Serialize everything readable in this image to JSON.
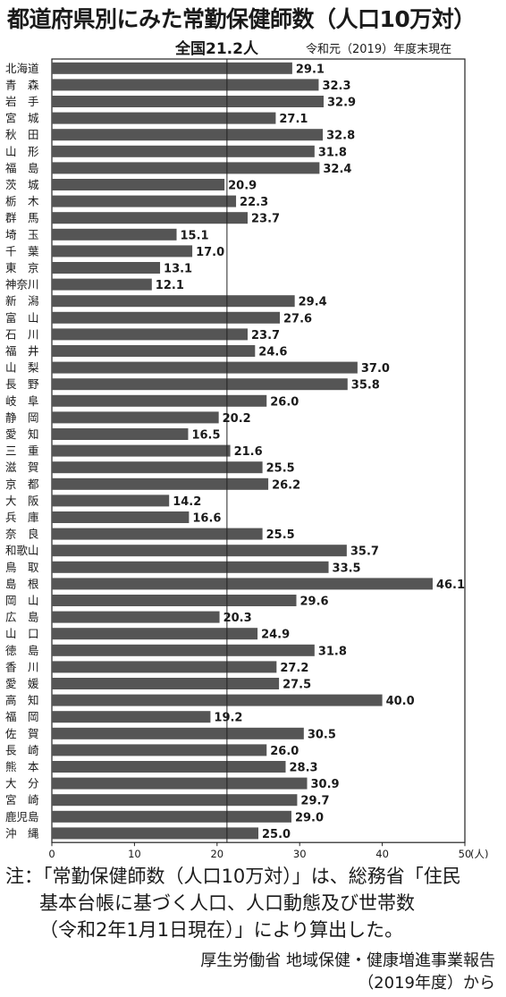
{
  "title": "都道府県別にみた常勤保健師数（人口10万対）",
  "national_label": "全国21.2人",
  "as_of": "令和元（2019）年度末現在",
  "chart_data": {
    "type": "bar",
    "orientation": "horizontal",
    "categories": [
      "北海道",
      "青　森",
      "岩　手",
      "宮　城",
      "秋　田",
      "山　形",
      "福　島",
      "茨　城",
      "栃　木",
      "群　馬",
      "埼　玉",
      "千　葉",
      "東　京",
      "神奈川",
      "新　潟",
      "富　山",
      "石　川",
      "福　井",
      "山　梨",
      "長　野",
      "岐　阜",
      "静　岡",
      "愛　知",
      "三　重",
      "滋　賀",
      "京　都",
      "大　阪",
      "兵　庫",
      "奈　良",
      "和歌山",
      "鳥　取",
      "島　根",
      "岡　山",
      "広　島",
      "山　口",
      "徳　島",
      "香　川",
      "愛　媛",
      "高　知",
      "福　岡",
      "佐　賀",
      "長　崎",
      "熊　本",
      "大　分",
      "宮　崎",
      "鹿児島",
      "沖　縄"
    ],
    "values": [
      29.1,
      32.3,
      32.9,
      27.1,
      32.8,
      31.8,
      32.4,
      20.9,
      22.3,
      23.7,
      15.1,
      17.0,
      13.1,
      12.1,
      29.4,
      27.6,
      23.7,
      24.6,
      37.0,
      35.8,
      26.0,
      20.2,
      16.5,
      21.6,
      25.5,
      26.2,
      14.2,
      16.6,
      25.5,
      35.7,
      33.5,
      46.1,
      29.6,
      20.3,
      24.9,
      31.8,
      27.2,
      27.5,
      40.0,
      19.2,
      30.5,
      26.0,
      28.3,
      30.9,
      29.7,
      29.0,
      25.0
    ],
    "value_labels": [
      "29.1",
      "32.3",
      "32.9",
      "27.1",
      "32.8",
      "31.8",
      "32.4",
      "20.9",
      "22.3",
      "23.7",
      "15.1",
      "17.0",
      "13.1",
      "12.1",
      "29.4",
      "27.6",
      "23.7",
      "24.6",
      "37.0",
      "35.8",
      "26.0",
      "20.2",
      "16.5",
      "21.6",
      "25.5",
      "26.2",
      "14.2",
      "16.6",
      "25.5",
      "35.7",
      "33.5",
      "46.1",
      "29.6",
      "20.3",
      "24.9",
      "31.8",
      "27.2",
      "27.5",
      "40.0",
      "19.2",
      "30.5",
      "26.0",
      "28.3",
      "30.9",
      "29.7",
      "29.0",
      "25.0"
    ],
    "xlim": [
      0,
      50
    ],
    "xticks": [
      "0",
      "10",
      "20",
      "30",
      "40",
      "50"
    ],
    "xunit": "(人)",
    "reference_value": 21.2,
    "bar_color": "#555555"
  },
  "note": {
    "line1": "注：「常勤保健師数（人口10万対）」は、総務省「住民",
    "line2": "基本台帳に基づく人口、人口動態及び世帯数",
    "line3": "（令和2年1月1日現在）」により算出した。"
  },
  "source": {
    "line1": "厚生労働省 地域保健・健康増進事業報告",
    "line2": "（2019年度）から"
  }
}
